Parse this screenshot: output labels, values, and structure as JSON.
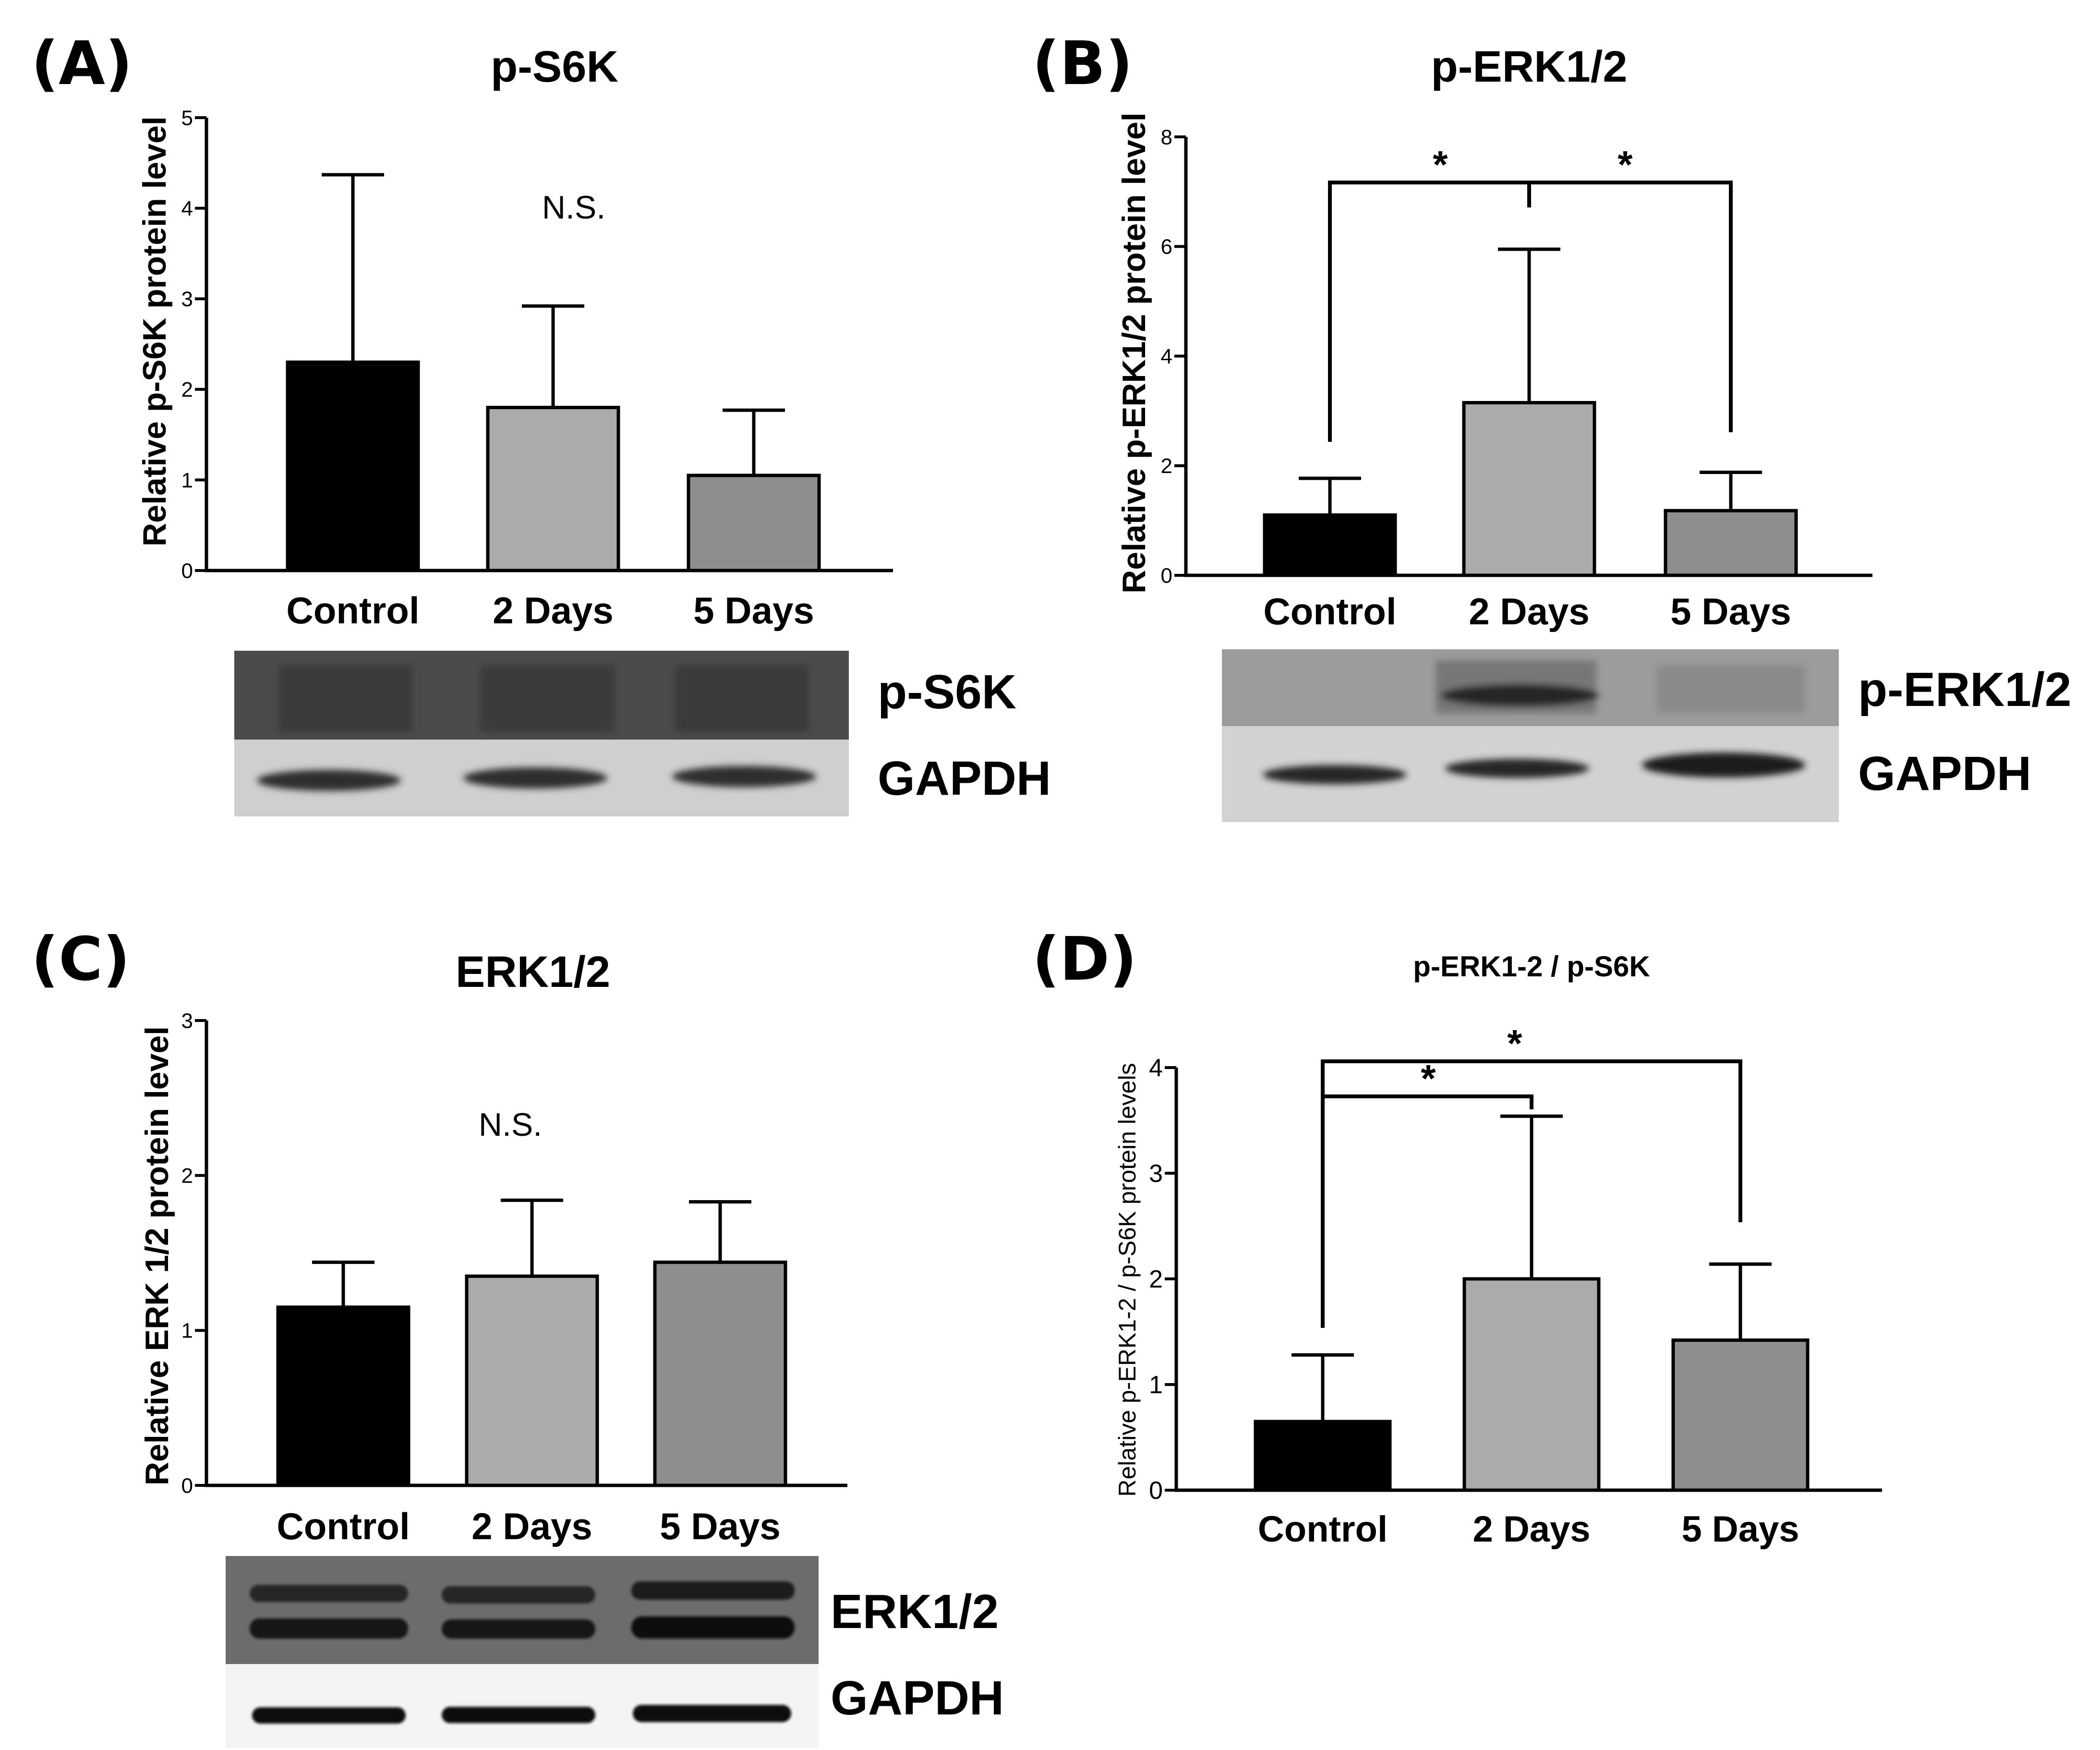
{
  "chart_data": [
    {
      "type": "bar",
      "panel": "(A)",
      "title": "p-S6K",
      "ylabel": "Relative p-S6K protein level",
      "categories": [
        "Control",
        "2 Days",
        "5 Days"
      ],
      "values": [
        2.3,
        1.8,
        1.05
      ],
      "errors": [
        2.07,
        1.12,
        0.72
      ],
      "ylim": [
        0,
        5
      ],
      "yticks": [
        "0",
        "1",
        "2",
        "3",
        "4",
        "5"
      ],
      "colors": [
        "#000000",
        "#ababab",
        "#8e8e8e"
      ],
      "annotations": [
        {
          "text": "N.S."
        }
      ],
      "significance": [],
      "blot": {
        "bands": [
          "p-S6K",
          "GAPDH"
        ]
      }
    },
    {
      "type": "bar",
      "panel": "(B)",
      "title": "p-ERK1/2",
      "ylabel": "Relative p-ERK1/2 protein level",
      "categories": [
        "Control",
        "2 Days",
        "5 Days"
      ],
      "values": [
        1.1,
        3.15,
        1.18
      ],
      "errors": [
        0.67,
        2.8,
        0.7
      ],
      "ylim": [
        0,
        8
      ],
      "yticks": [
        "0",
        "2",
        "4",
        "6",
        "8"
      ],
      "colors": [
        "#000000",
        "#ababab",
        "#8e8e8e"
      ],
      "annotations": [],
      "significance": [
        {
          "from": 0,
          "to": 1,
          "label": "*"
        },
        {
          "from": 1,
          "to": 2,
          "label": "*"
        }
      ],
      "blot": {
        "bands": [
          "p-ERK1/2",
          "GAPDH"
        ]
      }
    },
    {
      "type": "bar",
      "panel": "(C)",
      "title": "ERK1/2",
      "ylabel": "Relative ERK 1/2 protein level",
      "categories": [
        "Control",
        "2 Days",
        "5 Days"
      ],
      "values": [
        1.15,
        1.35,
        1.44
      ],
      "errors": [
        0.29,
        0.49,
        0.39
      ],
      "ylim": [
        0,
        3
      ],
      "yticks": [
        "0",
        "1",
        "2",
        "3"
      ],
      "colors": [
        "#000000",
        "#ababab",
        "#8e8e8e"
      ],
      "annotations": [
        {
          "text": "N.S."
        }
      ],
      "significance": [],
      "blot": {
        "bands": [
          "ERK1/2",
          "GAPDH"
        ]
      }
    },
    {
      "type": "bar",
      "panel": "(D)",
      "title": "p-ERK1-2 / p-S6K",
      "ylabel": "Relative p-ERK1-2 / p-S6K protein levels",
      "categories": [
        "Control",
        "2 Days",
        "5 Days"
      ],
      "values": [
        0.65,
        2.0,
        1.42
      ],
      "errors": [
        0.63,
        1.54,
        0.72
      ],
      "ylim": [
        0,
        4
      ],
      "yticks": [
        "0",
        "1",
        "2",
        "3",
        "4"
      ],
      "colors": [
        "#000000",
        "#ababab",
        "#8e8e8e"
      ],
      "annotations": [],
      "significance": [
        {
          "from": 0,
          "to": 1,
          "label": "*"
        },
        {
          "from": 0,
          "to": 2,
          "label": "*"
        }
      ],
      "blot": null
    }
  ]
}
